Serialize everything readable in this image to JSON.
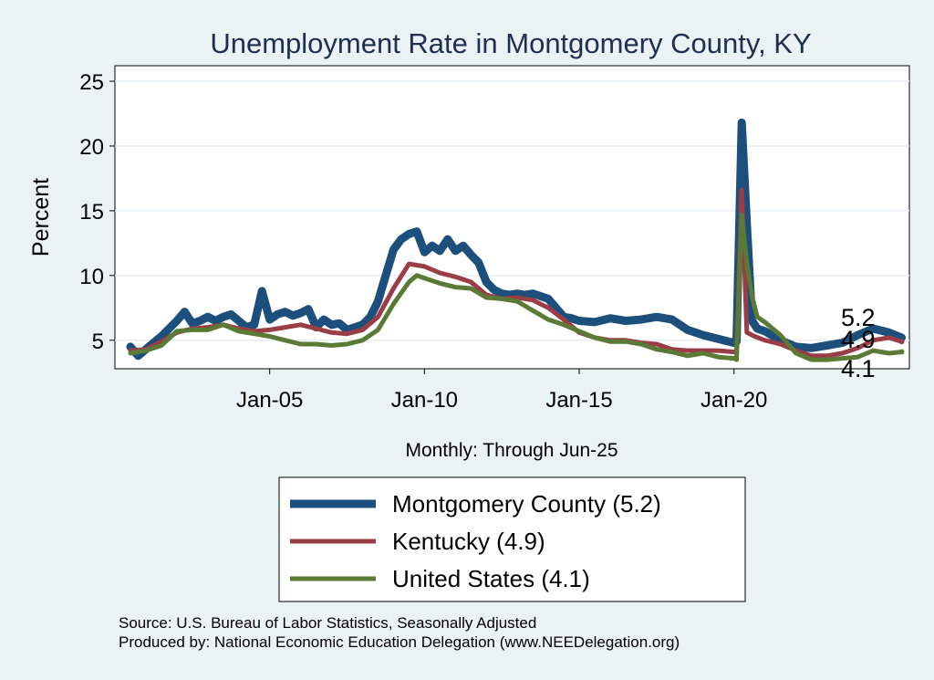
{
  "chart_data": {
    "type": "line",
    "title": "Unemployment Rate in Montgomery  County, KY",
    "ylabel": "Percent",
    "xlabel": "Monthly: Through Jun-25",
    "ylim": [
      2.8,
      26.2
    ],
    "xlim": [
      "2000-01",
      "2025-09"
    ],
    "yticks": [
      5,
      10,
      15,
      20,
      25
    ],
    "xticks": [
      {
        "label": "Jan-05",
        "date": "2005-01"
      },
      {
        "label": "Jan-10",
        "date": "2010-01"
      },
      {
        "label": "Jan-15",
        "date": "2015-01"
      },
      {
        "label": "Jan-20",
        "date": "2020-01"
      }
    ],
    "grid": true,
    "legend_placement": "bottom",
    "series": [
      {
        "name": "Montgomery  County",
        "legend_label": "Montgomery  County (5.2)",
        "end_label": "5.2",
        "color": "#1d4f7d",
        "points": [
          [
            "2000-07",
            4.5
          ],
          [
            "2000-10",
            3.8
          ],
          [
            "2001-01",
            4.3
          ],
          [
            "2001-04",
            4.8
          ],
          [
            "2001-07",
            5.3
          ],
          [
            "2001-10",
            5.9
          ],
          [
            "2002-01",
            6.5
          ],
          [
            "2002-04",
            7.2
          ],
          [
            "2002-07",
            6.3
          ],
          [
            "2002-10",
            6.5
          ],
          [
            "2003-01",
            6.8
          ],
          [
            "2003-04",
            6.5
          ],
          [
            "2003-07",
            6.8
          ],
          [
            "2003-10",
            7.0
          ],
          [
            "2004-01",
            6.5
          ],
          [
            "2004-04",
            6.0
          ],
          [
            "2004-07",
            6.2
          ],
          [
            "2004-10",
            8.8
          ],
          [
            "2005-01",
            6.6
          ],
          [
            "2005-04",
            7.0
          ],
          [
            "2005-07",
            7.2
          ],
          [
            "2005-10",
            6.9
          ],
          [
            "2006-01",
            7.1
          ],
          [
            "2006-04",
            7.4
          ],
          [
            "2006-07",
            6.0
          ],
          [
            "2006-10",
            6.6
          ],
          [
            "2007-01",
            6.2
          ],
          [
            "2007-04",
            6.3
          ],
          [
            "2007-07",
            5.8
          ],
          [
            "2007-10",
            6.0
          ],
          [
            "2008-01",
            6.2
          ],
          [
            "2008-04",
            6.8
          ],
          [
            "2008-07",
            8.0
          ],
          [
            "2008-10",
            10.0
          ],
          [
            "2009-01",
            12.0
          ],
          [
            "2009-04",
            12.8
          ],
          [
            "2009-07",
            13.2
          ],
          [
            "2009-10",
            13.4
          ],
          [
            "2010-01",
            11.8
          ],
          [
            "2010-04",
            12.3
          ],
          [
            "2010-07",
            11.9
          ],
          [
            "2010-10",
            12.8
          ],
          [
            "2011-01",
            11.9
          ],
          [
            "2011-04",
            12.3
          ],
          [
            "2011-07",
            11.6
          ],
          [
            "2011-10",
            11.0
          ],
          [
            "2012-01",
            9.5
          ],
          [
            "2012-04",
            8.9
          ],
          [
            "2012-07",
            8.6
          ],
          [
            "2012-10",
            8.5
          ],
          [
            "2013-01",
            8.6
          ],
          [
            "2013-04",
            8.5
          ],
          [
            "2013-07",
            8.6
          ],
          [
            "2013-10",
            8.4
          ],
          [
            "2014-01",
            8.2
          ],
          [
            "2014-04",
            7.5
          ],
          [
            "2014-07",
            6.8
          ],
          [
            "2014-10",
            6.7
          ],
          [
            "2015-01",
            6.5
          ],
          [
            "2015-07",
            6.4
          ],
          [
            "2016-01",
            6.7
          ],
          [
            "2016-07",
            6.5
          ],
          [
            "2017-01",
            6.6
          ],
          [
            "2017-07",
            6.8
          ],
          [
            "2018-01",
            6.6
          ],
          [
            "2018-07",
            5.8
          ],
          [
            "2019-01",
            5.4
          ],
          [
            "2019-07",
            5.1
          ],
          [
            "2020-01",
            4.8
          ],
          [
            "2020-02",
            4.9
          ],
          [
            "2020-04",
            21.8
          ],
          [
            "2020-06",
            14.0
          ],
          [
            "2020-08",
            6.5
          ],
          [
            "2020-10",
            5.9
          ],
          [
            "2021-01",
            5.7
          ],
          [
            "2021-07",
            5.0
          ],
          [
            "2022-01",
            4.5
          ],
          [
            "2022-07",
            4.4
          ],
          [
            "2023-01",
            4.6
          ],
          [
            "2023-07",
            4.8
          ],
          [
            "2024-01",
            5.4
          ],
          [
            "2024-07",
            5.9
          ],
          [
            "2025-01",
            5.6
          ],
          [
            "2025-06",
            5.2
          ]
        ]
      },
      {
        "name": "Kentucky",
        "legend_label": "Kentucky (4.9)",
        "end_label": "4.9",
        "color": "#9b3d47",
        "points": [
          [
            "2000-07",
            4.2
          ],
          [
            "2001-01",
            4.3
          ],
          [
            "2001-07",
            4.9
          ],
          [
            "2002-01",
            5.6
          ],
          [
            "2002-07",
            5.9
          ],
          [
            "2003-01",
            6.0
          ],
          [
            "2003-07",
            6.2
          ],
          [
            "2004-01",
            5.9
          ],
          [
            "2004-07",
            5.7
          ],
          [
            "2005-01",
            5.8
          ],
          [
            "2005-07",
            6.0
          ],
          [
            "2006-01",
            6.2
          ],
          [
            "2006-07",
            5.9
          ],
          [
            "2007-01",
            5.6
          ],
          [
            "2007-07",
            5.5
          ],
          [
            "2008-01",
            5.8
          ],
          [
            "2008-07",
            6.8
          ],
          [
            "2009-01",
            9.0
          ],
          [
            "2009-07",
            10.9
          ],
          [
            "2010-01",
            10.7
          ],
          [
            "2010-07",
            10.2
          ],
          [
            "2011-01",
            9.9
          ],
          [
            "2011-07",
            9.5
          ],
          [
            "2012-01",
            8.5
          ],
          [
            "2012-07",
            8.2
          ],
          [
            "2013-01",
            8.3
          ],
          [
            "2013-07",
            8.1
          ],
          [
            "2014-01",
            7.5
          ],
          [
            "2014-07",
            6.6
          ],
          [
            "2015-01",
            5.6
          ],
          [
            "2015-07",
            5.2
          ],
          [
            "2016-01",
            5.0
          ],
          [
            "2016-07",
            5.0
          ],
          [
            "2017-01",
            4.8
          ],
          [
            "2017-07",
            4.7
          ],
          [
            "2018-01",
            4.3
          ],
          [
            "2018-07",
            4.2
          ],
          [
            "2019-01",
            4.2
          ],
          [
            "2019-07",
            4.2
          ],
          [
            "2020-01",
            4.1
          ],
          [
            "2020-02",
            4.1
          ],
          [
            "2020-04",
            16.6
          ],
          [
            "2020-06",
            5.6
          ],
          [
            "2020-09",
            5.3
          ],
          [
            "2021-01",
            5.0
          ],
          [
            "2021-07",
            4.7
          ],
          [
            "2022-01",
            4.2
          ],
          [
            "2022-07",
            3.8
          ],
          [
            "2023-01",
            3.8
          ],
          [
            "2023-07",
            4.0
          ],
          [
            "2024-01",
            4.4
          ],
          [
            "2024-07",
            5.0
          ],
          [
            "2025-01",
            5.2
          ],
          [
            "2025-06",
            4.9
          ]
        ]
      },
      {
        "name": "United States",
        "legend_label": "United States (4.1)",
        "end_label": "4.1",
        "color": "#5b7a35",
        "points": [
          [
            "2000-07",
            4.0
          ],
          [
            "2001-01",
            4.2
          ],
          [
            "2001-07",
            4.6
          ],
          [
            "2002-01",
            5.7
          ],
          [
            "2002-07",
            5.8
          ],
          [
            "2003-01",
            5.8
          ],
          [
            "2003-07",
            6.2
          ],
          [
            "2004-01",
            5.7
          ],
          [
            "2004-07",
            5.5
          ],
          [
            "2005-01",
            5.3
          ],
          [
            "2005-07",
            5.0
          ],
          [
            "2006-01",
            4.7
          ],
          [
            "2006-07",
            4.7
          ],
          [
            "2007-01",
            4.6
          ],
          [
            "2007-07",
            4.7
          ],
          [
            "2008-01",
            5.0
          ],
          [
            "2008-07",
            5.8
          ],
          [
            "2009-01",
            7.8
          ],
          [
            "2009-07",
            9.5
          ],
          [
            "2009-10",
            10.0
          ],
          [
            "2010-01",
            9.8
          ],
          [
            "2010-07",
            9.4
          ],
          [
            "2011-01",
            9.1
          ],
          [
            "2011-07",
            9.0
          ],
          [
            "2012-01",
            8.3
          ],
          [
            "2012-07",
            8.2
          ],
          [
            "2013-01",
            8.0
          ],
          [
            "2013-07",
            7.3
          ],
          [
            "2014-01",
            6.6
          ],
          [
            "2014-07",
            6.2
          ],
          [
            "2015-01",
            5.7
          ],
          [
            "2015-07",
            5.2
          ],
          [
            "2016-01",
            4.9
          ],
          [
            "2016-07",
            4.9
          ],
          [
            "2017-01",
            4.7
          ],
          [
            "2017-07",
            4.3
          ],
          [
            "2018-01",
            4.1
          ],
          [
            "2018-07",
            3.8
          ],
          [
            "2019-01",
            4.0
          ],
          [
            "2019-07",
            3.7
          ],
          [
            "2020-01",
            3.6
          ],
          [
            "2020-02",
            3.5
          ],
          [
            "2020-04",
            14.7
          ],
          [
            "2020-06",
            11.0
          ],
          [
            "2020-08",
            8.4
          ],
          [
            "2020-10",
            6.8
          ],
          [
            "2021-01",
            6.4
          ],
          [
            "2021-07",
            5.4
          ],
          [
            "2022-01",
            4.0
          ],
          [
            "2022-07",
            3.5
          ],
          [
            "2023-01",
            3.5
          ],
          [
            "2023-07",
            3.6
          ],
          [
            "2024-01",
            3.7
          ],
          [
            "2024-07",
            4.2
          ],
          [
            "2025-01",
            4.0
          ],
          [
            "2025-06",
            4.1
          ]
        ]
      }
    ]
  },
  "source": "Source: U.S. Bureau of Labor Statistics, Seasonally Adjusted",
  "producer": "Produced by: National Economic Education Delegation (www.NEEDelegation.org)"
}
